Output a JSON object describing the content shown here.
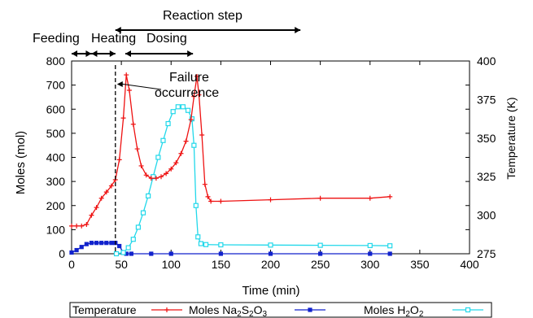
{
  "chart_data": {
    "type": "line",
    "xlabel": "Time (min)",
    "ylabel": "Moles (mol)",
    "y2label": "Temperature (K)",
    "xlim": [
      0,
      400
    ],
    "ylim": [
      0,
      800
    ],
    "y2lim": [
      275,
      400
    ],
    "xticks": [
      0,
      50,
      100,
      150,
      200,
      250,
      300,
      350,
      400
    ],
    "yticks": [
      0,
      100,
      200,
      300,
      400,
      500,
      600,
      700,
      800
    ],
    "y2ticks": [
      275,
      300,
      325,
      350,
      375,
      400
    ],
    "grid": false,
    "legend_position": "bottom",
    "phases": [
      {
        "label": "Feeding",
        "x_start": 0,
        "x_end": 20
      },
      {
        "label": "Heating",
        "x_start": 20,
        "x_end": 44
      },
      {
        "label": "Dosing",
        "x_start": 54,
        "x_end": 122
      },
      {
        "label": "Reaction step",
        "x_start": 44,
        "x_end": 230
      }
    ],
    "annotation": {
      "text": [
        "Failure",
        "occurrence"
      ],
      "x": 44
    },
    "series": [
      {
        "name": "Temperature",
        "axis": "right",
        "color": "#ee1111",
        "marker": "plus",
        "x": [
          0,
          5,
          10,
          15,
          20,
          25,
          30,
          35,
          40,
          44,
          48,
          52,
          55,
          58,
          62,
          66,
          70,
          75,
          80,
          85,
          90,
          95,
          100,
          105,
          110,
          115,
          120,
          123,
          126,
          128,
          131,
          134,
          137,
          140,
          150,
          200,
          250,
          300,
          320
        ],
        "y": [
          293,
          293,
          293,
          294,
          300,
          305,
          311,
          315,
          319,
          323,
          336,
          363,
          391,
          381,
          359,
          343,
          332,
          326,
          324,
          324,
          325,
          327,
          330,
          334,
          340,
          348,
          362,
          377,
          390,
          378,
          352,
          320,
          312,
          309,
          309,
          310,
          311,
          311,
          312
        ]
      },
      {
        "name": "Moles Na2S2O3",
        "name_parts": [
          "Moles Na",
          "2",
          "S",
          "2",
          "O",
          "3"
        ],
        "axis": "left",
        "color": "#1122cc",
        "marker": "square",
        "x": [
          0,
          5,
          10,
          15,
          20,
          25,
          30,
          35,
          40,
          44,
          48,
          52,
          55,
          60,
          80,
          100,
          150,
          200,
          250,
          300,
          320
        ],
        "y": [
          5,
          15,
          28,
          40,
          45,
          45,
          45,
          45,
          45,
          45,
          32,
          5,
          0,
          0,
          0,
          0,
          0,
          0,
          0,
          0,
          0
        ]
      },
      {
        "name": "Moles H2O2",
        "name_parts": [
          "Moles H",
          "2",
          "O",
          "2"
        ],
        "axis": "left",
        "color": "#22d8ea",
        "marker": "square-open",
        "x": [
          45,
          52,
          57,
          62,
          67,
          72,
          77,
          82,
          87,
          92,
          97,
          102,
          107,
          112,
          117,
          121,
          123,
          125,
          127,
          130,
          135,
          150,
          200,
          250,
          300,
          320
        ],
        "y": [
          0,
          5,
          25,
          60,
          110,
          170,
          240,
          320,
          400,
          470,
          540,
          590,
          610,
          610,
          595,
          560,
          450,
          200,
          70,
          42,
          38,
          37,
          36,
          35,
          34,
          33
        ]
      }
    ]
  }
}
